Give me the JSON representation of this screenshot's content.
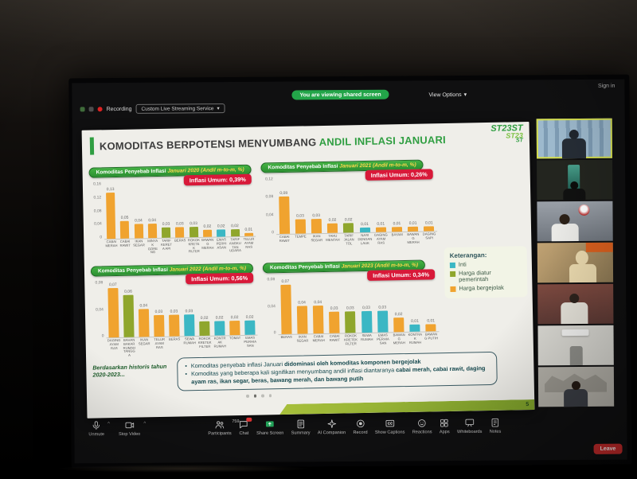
{
  "meeting": {
    "recording_label": "Recording",
    "stream_service_label": "Custom Live Streaming Service",
    "viewing_banner": "You are viewing shared screen",
    "view_options_label": "View Options",
    "sign_in_label": "Sign in",
    "participants_count": "759",
    "toolbar": [
      {
        "id": "unmute",
        "label": "Unmute",
        "icon": "mic-icon",
        "caret": true
      },
      {
        "id": "stop-video",
        "label": "Stop Video",
        "icon": "video-icon",
        "caret": true
      },
      {
        "id": "participants",
        "label": "Participants",
        "icon": "participants-icon",
        "count": true
      },
      {
        "id": "chat",
        "label": "Chat",
        "icon": "chat-icon",
        "badge": true
      },
      {
        "id": "share-screen",
        "label": "Share Screen",
        "icon": "share-screen-icon"
      },
      {
        "id": "summary",
        "label": "Summary",
        "icon": "summary-icon"
      },
      {
        "id": "ai-companion",
        "label": "AI Companion",
        "icon": "ai-companion-icon"
      },
      {
        "id": "record",
        "label": "Record",
        "icon": "record-icon"
      },
      {
        "id": "show-captions",
        "label": "Show Captions",
        "icon": "captions-icon"
      },
      {
        "id": "reactions",
        "label": "Reactions",
        "icon": "reactions-icon"
      },
      {
        "id": "apps",
        "label": "Apps",
        "icon": "apps-icon"
      },
      {
        "id": "whiteboards",
        "label": "Whiteboards",
        "icon": "whiteboard-icon"
      },
      {
        "id": "notes",
        "label": "Notes",
        "icon": "notes-icon"
      }
    ],
    "leave_label": "Leave"
  },
  "slide": {
    "title": "KOMODITAS BERPOTENSI MENYUMBANG ",
    "title_accent": "ANDIL INFLASI JANUARI",
    "logo": [
      "ST23ST",
      "ST23",
      "ST"
    ],
    "legend": {
      "title": "Keterangan:",
      "items": [
        {
          "label": "Inti",
          "key": "inti",
          "color": "#3bb7c4"
        },
        {
          "label": "Harga diatur pemerintah",
          "key": "diatur",
          "color": "#8fa62c"
        },
        {
          "label": "Harga bergejolak",
          "key": "bergejolak",
          "color": "#f0a32f"
        }
      ]
    },
    "footnote_lead": "Berdasarkan historis tahun 2020-2023...",
    "bullets": [
      {
        "text": "Komoditas penyebab inflasi Januari didominasi oleh komoditas komponen bergejolak",
        "bold": "didominasi oleh komoditas komponen bergejolak"
      },
      {
        "text": "Komoditas yang beberapa kali signifikan menyumbang andil inflasi diantaranya cabai merah, cabai rawit, daging ayam ras, ikan segar, beras, bawang merah, dan bawang putih",
        "bold": "cabai merah, cabai rawit, daging ayam ras, ikan segar, beras, bawang merah, dan bawang putih"
      }
    ],
    "pager_dots": 4,
    "page_number": "5"
  },
  "chart_data": [
    {
      "type": "bar",
      "title": "Komoditas Penyebab Inflasi ",
      "title_highlight": "Januari 2020 (Andil m-to-m, %)",
      "badge": "Inflasi Umum: 0,39%",
      "categories": [
        "CABAI MERAH",
        "CABAI RAWIT",
        "IKAN SEGAR",
        "MINYAK GORENG",
        "TARIF KERETA API",
        "BERAS",
        "ROKOK KRETEK FILTER",
        "BAWANG MERAH",
        "EMAS PERHIASAN",
        "TARIF ANGKUTAN UDARA",
        "TELUR AYAM RAS"
      ],
      "values": [
        0.13,
        0.05,
        0.04,
        0.04,
        0.03,
        0.03,
        0.03,
        0.02,
        0.02,
        0.02,
        0.01
      ],
      "values_display": [
        "0,13",
        "0,05",
        "0,04",
        "0,04",
        "0,03",
        "0,03",
        "0,03",
        "0,02",
        "0,02",
        "0,02",
        "0,01"
      ],
      "series_colors": [
        "bergejolak",
        "bergejolak",
        "bergejolak",
        "bergejolak",
        "diatur",
        "bergejolak",
        "diatur",
        "bergejolak",
        "inti",
        "diatur",
        "bergejolak"
      ],
      "ylim": [
        0,
        0.16
      ],
      "yticks": [
        "0,16",
        "0,12",
        "0,08",
        "0,04",
        "0"
      ],
      "legend_position": "right",
      "grid": false
    },
    {
      "type": "bar",
      "title": "Komoditas Penyebab Inflasi ",
      "title_highlight": "Januari 2021 (Andil m-to-m, %)",
      "badge": "Inflasi Umum: 0,26%",
      "categories": [
        "CABAI RAWIT",
        "TEMPE",
        "IKAN SEGAR",
        "TAHU MENTAH",
        "TARIF JALAN TOL",
        "NASI DENGAN LAUK",
        "DAGING AYAM RAS",
        "BAYAM",
        "BAWANG MERAH",
        "DAGING SAPI"
      ],
      "values": [
        0.08,
        0.03,
        0.03,
        0.02,
        0.02,
        0.01,
        0.01,
        0.01,
        0.01,
        0.01
      ],
      "values_display": [
        "0,08",
        "0,03",
        "0,03",
        "0,02",
        "0,02",
        "0,01",
        "0,01",
        "0,01",
        "0,01",
        "0,01"
      ],
      "series_colors": [
        "bergejolak",
        "bergejolak",
        "bergejolak",
        "bergejolak",
        "diatur",
        "inti",
        "bergejolak",
        "bergejolak",
        "bergejolak",
        "bergejolak"
      ],
      "ylim": [
        0,
        0.12
      ],
      "yticks": [
        "0,12",
        "0,08",
        "0,04",
        "0"
      ],
      "legend_position": "right",
      "grid": false
    },
    {
      "type": "bar",
      "title": "Komoditas Penyebab Inflasi ",
      "title_highlight": "Januari 2022 (Andil m-to-m, %)",
      "badge": "Inflasi Umum: 0,56%",
      "categories": [
        "DAGING AYAM RAS",
        "BAHAN BAKAR RUMAH TANGGA",
        "IKAN SEGAR",
        "TELUR AYAM RAS",
        "BERAS",
        "SEWA RUMAH",
        "ROKOK KRETEK FILTER",
        "KONTRAK RUMAH",
        "TOMAT",
        "EMAS PERHIASAN"
      ],
      "values": [
        0.07,
        0.06,
        0.04,
        0.03,
        0.03,
        0.03,
        0.02,
        0.02,
        0.02,
        0.02
      ],
      "values_display": [
        "0,07",
        "0,06",
        "0,04",
        "0,03",
        "0,03",
        "0,03",
        "0,02",
        "0,02",
        "0,02",
        "0,02"
      ],
      "series_colors": [
        "bergejolak",
        "diatur",
        "bergejolak",
        "bergejolak",
        "bergejolak",
        "inti",
        "diatur",
        "inti",
        "bergejolak",
        "inti"
      ],
      "ylim": [
        0,
        0.08
      ],
      "yticks": [
        "0,08",
        "0,04",
        "0"
      ],
      "legend_position": "right",
      "grid": false
    },
    {
      "type": "bar",
      "title": "Komoditas Penyebab Inflasi ",
      "title_highlight": "Januari 2023 (Andil m-to-m, %)",
      "badge": "Inflasi Umum: 0,34%",
      "categories": [
        "BERAS",
        "IKAN SEGAR",
        "CABAI MERAH",
        "CABAI RAWIT",
        "ROKOK KRETEK FILTER",
        "SEWA RUMAH",
        "EMAS PERHIASAN",
        "BAWANG MERAH",
        "KONTRAK RUMAH",
        "BAWANG PUTIH"
      ],
      "values": [
        0.07,
        0.04,
        0.04,
        0.03,
        0.03,
        0.03,
        0.03,
        0.02,
        0.01,
        0.01
      ],
      "values_display": [
        "0,07",
        "0,04",
        "0,04",
        "0,03",
        "0,03",
        "0,03",
        "0,03",
        "0,02",
        "0,01",
        "0,01"
      ],
      "series_colors": [
        "bergejolak",
        "bergejolak",
        "bergejolak",
        "bergejolak",
        "diatur",
        "inti",
        "inti",
        "bergejolak",
        "inti",
        "bergejolak"
      ],
      "ylim": [
        0,
        0.08
      ],
      "yticks": [
        "0,08",
        "0,04",
        "0"
      ],
      "legend_position": "right",
      "grid": false
    }
  ],
  "video_tiles": [
    {
      "scene": "blue",
      "active": true
    },
    {
      "scene": "darkphone",
      "active": false
    },
    {
      "scene": "office",
      "active": false
    },
    {
      "scene": "hijab",
      "active": false
    },
    {
      "scene": "city",
      "active": false
    },
    {
      "scene": "room",
      "active": false
    },
    {
      "scene": "map",
      "active": false
    }
  ]
}
